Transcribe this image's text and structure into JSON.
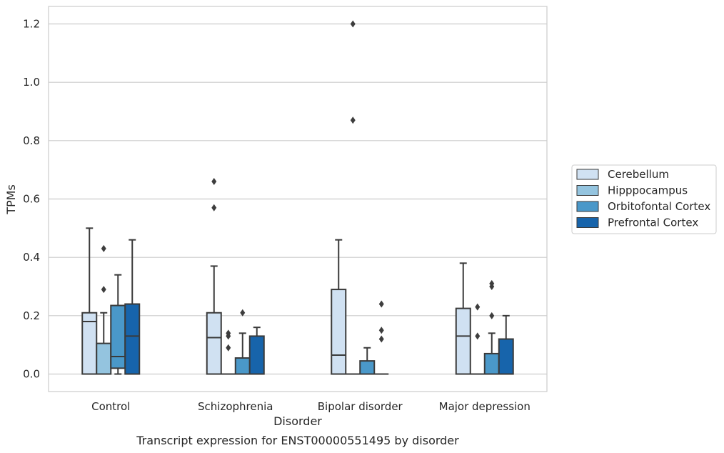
{
  "chart_data": {
    "type": "boxplot",
    "caption": "Transcript expression for ENST00000551495 by disorder",
    "xlabel": "Disorder",
    "ylabel": "TPMs",
    "ylim": [
      -0.06,
      1.26
    ],
    "yticks": [
      "0.0",
      "0.2",
      "0.4",
      "0.6",
      "0.8",
      "1.0",
      "1.2"
    ],
    "ytick_values": [
      0,
      0.2,
      0.4,
      0.6,
      0.8,
      1.0,
      1.2
    ],
    "grid": true,
    "legend_position": "right",
    "categories": [
      "Control",
      "Schizophrenia",
      "Bipolar disorder",
      "Major depression"
    ],
    "series": [
      {
        "name": "Cerebellum",
        "color": "#d0e1f2",
        "boxes": [
          {
            "q1": 0.0,
            "median": 0.18,
            "q3": 0.21,
            "whisker_low": 0.0,
            "whisker_high": 0.5,
            "outliers": []
          },
          {
            "q1": 0.0,
            "median": 0.125,
            "q3": 0.21,
            "whisker_low": 0.0,
            "whisker_high": 0.37,
            "outliers": [
              0.57,
              0.66
            ]
          },
          {
            "q1": 0.0,
            "median": 0.065,
            "q3": 0.29,
            "whisker_low": 0.0,
            "whisker_high": 0.46,
            "outliers": []
          },
          {
            "q1": 0.0,
            "median": 0.13,
            "q3": 0.225,
            "whisker_low": 0.0,
            "whisker_high": 0.38,
            "outliers": []
          }
        ]
      },
      {
        "name": "Hipppocampus",
        "color": "#94c4df",
        "boxes": [
          {
            "q1": 0.0,
            "median": 0.0,
            "q3": 0.105,
            "whisker_low": 0.0,
            "whisker_high": 0.21,
            "outliers": [
              0.29,
              0.43
            ]
          },
          {
            "q1": 0.0,
            "median": 0.0,
            "q3": 0.0,
            "whisker_low": 0.0,
            "whisker_high": 0.0,
            "outliers": [
              0.09,
              0.13,
              0.14
            ]
          },
          {
            "q1": 0.0,
            "median": 0.0,
            "q3": 0.0,
            "whisker_low": 0.0,
            "whisker_high": 0.0,
            "outliers": [
              0.87,
              1.2
            ]
          },
          {
            "q1": 0.0,
            "median": 0.0,
            "q3": 0.0,
            "whisker_low": 0.0,
            "whisker_high": 0.0,
            "outliers": [
              0.13,
              0.23
            ]
          }
        ]
      },
      {
        "name": "Orbitofontal Cortex",
        "color": "#4a98c9",
        "boxes": [
          {
            "q1": 0.02,
            "median": 0.06,
            "q3": 0.235,
            "whisker_low": 0.0,
            "whisker_high": 0.34,
            "outliers": []
          },
          {
            "q1": 0.0,
            "median": 0.0,
            "q3": 0.055,
            "whisker_low": 0.0,
            "whisker_high": 0.14,
            "outliers": [
              0.21
            ]
          },
          {
            "q1": 0.0,
            "median": 0.0,
            "q3": 0.045,
            "whisker_low": 0.0,
            "whisker_high": 0.09,
            "outliers": []
          },
          {
            "q1": 0.0,
            "median": 0.0,
            "q3": 0.07,
            "whisker_low": 0.0,
            "whisker_high": 0.14,
            "outliers": [
              0.2,
              0.3,
              0.31
            ]
          }
        ]
      },
      {
        "name": "Prefrontal Cortex",
        "color": "#1764ab",
        "boxes": [
          {
            "q1": 0.0,
            "median": 0.13,
            "q3": 0.24,
            "whisker_low": 0.0,
            "whisker_high": 0.46,
            "outliers": []
          },
          {
            "q1": 0.0,
            "median": 0.0,
            "q3": 0.13,
            "whisker_low": 0.0,
            "whisker_high": 0.16,
            "outliers": []
          },
          {
            "q1": 0.0,
            "median": 0.0,
            "q3": 0.0,
            "whisker_low": 0.0,
            "whisker_high": 0.0,
            "outliers": [
              0.12,
              0.15,
              0.24
            ]
          },
          {
            "q1": 0.0,
            "median": 0.0,
            "q3": 0.12,
            "whisker_low": 0.0,
            "whisker_high": 0.2,
            "outliers": []
          }
        ]
      }
    ]
  },
  "style": {
    "grid_color": "#cccccc",
    "frame_color": "#cccccc",
    "line_color": "#3a3a3a"
  }
}
